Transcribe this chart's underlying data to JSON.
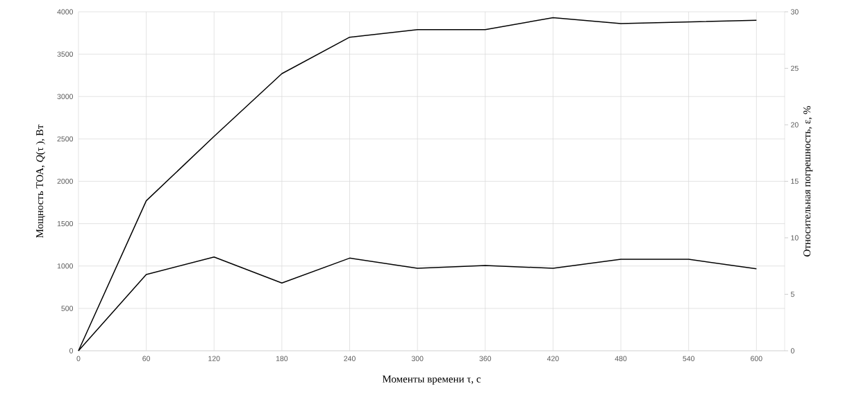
{
  "chart_data": {
    "type": "line",
    "xlabel": "Моменты времени τ, с",
    "ylabel": "Мощность ТОА, *Q*(τ ), Вт",
    "y2label": "Относительная погрешность, ε, %",
    "x": [
      0,
      60,
      120,
      180,
      240,
      300,
      360,
      420,
      480,
      540,
      600
    ],
    "series": [
      {
        "color": "#000000",
        "values": [
          0,
          1770,
          2530,
          3270,
          3700,
          3790,
          3790,
          3930,
          3860,
          3880,
          3900
        ]
      },
      {
        "color": "#000000",
        "axis": "y2",
        "values": [
          0,
          6.75,
          8.3,
          6.0,
          8.2,
          7.3,
          7.55,
          7.3,
          8.1,
          8.1,
          7.25
        ]
      }
    ],
    "xlim": [
      0,
      625
    ],
    "xticks": [
      0,
      60,
      120,
      180,
      240,
      300,
      360,
      420,
      480,
      540,
      600
    ],
    "ylim": [
      0,
      4000
    ],
    "yticks": [
      0,
      500,
      1000,
      1500,
      2000,
      2500,
      3000,
      3500,
      4000
    ],
    "y2lim": [
      0,
      30
    ],
    "y2ticks": [
      0,
      5,
      10,
      15,
      20,
      25,
      30
    ],
    "grid": true,
    "line_style": "solid"
  }
}
